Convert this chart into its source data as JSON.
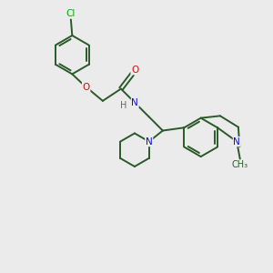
{
  "background_color": "#ebebeb",
  "bond_color": "#2a5a2a",
  "atom_colors": {
    "N": "#1010cc",
    "O": "#cc1010",
    "Cl": "#00aa00",
    "H": "#666666",
    "C": "#2a5a2a"
  },
  "figsize": [
    3.0,
    3.0
  ],
  "dpi": 100
}
